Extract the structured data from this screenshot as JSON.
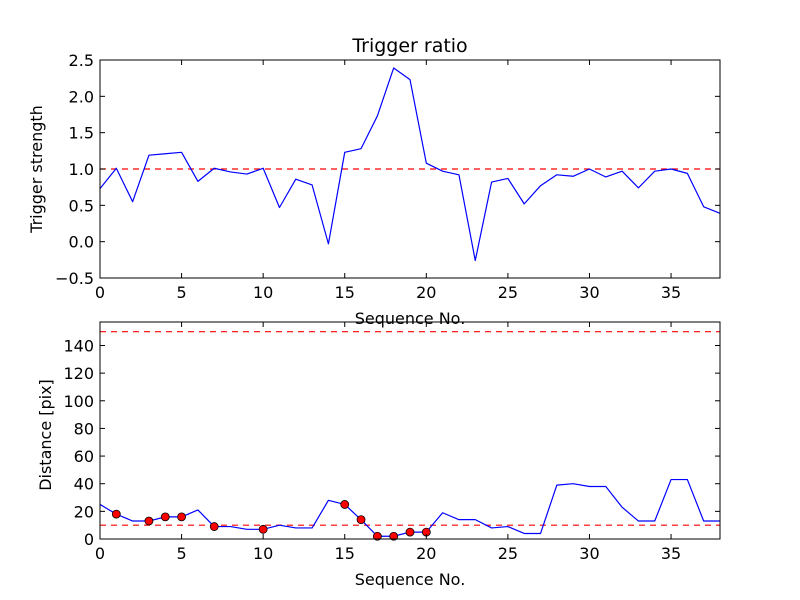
{
  "chart_data": [
    {
      "type": "line",
      "title": "Trigger ratio",
      "xlabel": "Sequence No.",
      "ylabel": "Trigger strength",
      "xlim": [
        0,
        38
      ],
      "ylim": [
        -0.5,
        2.5
      ],
      "xticks": [
        0,
        5,
        10,
        15,
        20,
        25,
        30,
        35
      ],
      "yticks": [
        -0.5,
        0.0,
        0.5,
        1.0,
        1.5,
        2.0,
        2.5
      ],
      "ytick_labels": [
        "−0.5",
        "0.0",
        "0.5",
        "1.0",
        "1.5",
        "2.0",
        "2.5"
      ],
      "grid": false,
      "colors": {
        "line": "#0000ff",
        "reference": "#ff0000"
      },
      "series": [
        {
          "x": [
            0,
            1,
            2,
            3,
            4,
            5,
            6,
            7,
            8,
            9,
            10,
            11,
            12,
            13,
            14,
            15,
            16,
            17,
            18,
            19,
            20,
            21,
            22,
            23,
            24,
            25,
            26,
            27,
            28,
            29,
            30,
            31,
            32,
            33,
            34,
            35,
            36,
            37,
            38
          ],
          "values": [
            0.73,
            1.01,
            0.55,
            1.19,
            1.21,
            1.23,
            0.83,
            1.01,
            0.96,
            0.93,
            1.01,
            0.47,
            0.86,
            0.78,
            -0.03,
            1.23,
            1.28,
            1.73,
            2.39,
            2.23,
            1.08,
            0.97,
            0.92,
            -0.26,
            0.82,
            0.87,
            0.52,
            0.77,
            0.92,
            0.9,
            1.0,
            0.89,
            0.97,
            0.74,
            0.97,
            1.0,
            0.94,
            0.48,
            0.39
          ]
        }
      ],
      "reference_lines": [
        1.0
      ]
    },
    {
      "type": "line",
      "title": "",
      "xlabel": "Sequence No.",
      "ylabel": "Distance [pix]",
      "xlim": [
        0,
        38
      ],
      "ylim": [
        0,
        157
      ],
      "xticks": [
        0,
        5,
        10,
        15,
        20,
        25,
        30,
        35
      ],
      "yticks": [
        0,
        20,
        40,
        60,
        80,
        100,
        120,
        140
      ],
      "ytick_labels": [
        "0",
        "20",
        "40",
        "60",
        "80",
        "100",
        "120",
        "140"
      ],
      "grid": false,
      "colors": {
        "line": "#0000ff",
        "reference": "#ff0000",
        "marker": "#ff0000"
      },
      "series": [
        {
          "x": [
            0,
            1,
            2,
            3,
            4,
            5,
            6,
            7,
            8,
            9,
            10,
            11,
            12,
            13,
            14,
            15,
            16,
            17,
            18,
            19,
            20,
            21,
            22,
            23,
            24,
            25,
            26,
            27,
            28,
            29,
            30,
            31,
            32,
            33,
            34,
            35,
            36,
            37,
            38
          ],
          "values": [
            25,
            18,
            13,
            13,
            16,
            16,
            21,
            9,
            9,
            7,
            7,
            10,
            8,
            8,
            28,
            25,
            14,
            2,
            2,
            5,
            5,
            19,
            14,
            14,
            8,
            9,
            4,
            4,
            39,
            40,
            38,
            38,
            23,
            13,
            13,
            43,
            43,
            13,
            13
          ]
        }
      ],
      "markers": {
        "x": [
          1,
          3,
          4,
          5,
          7,
          10,
          15,
          16,
          17,
          18,
          19,
          20
        ],
        "values": [
          18,
          13,
          16,
          16,
          9,
          7,
          25,
          14,
          2,
          2,
          5,
          5
        ]
      },
      "reference_lines": [
        150,
        10
      ]
    }
  ]
}
